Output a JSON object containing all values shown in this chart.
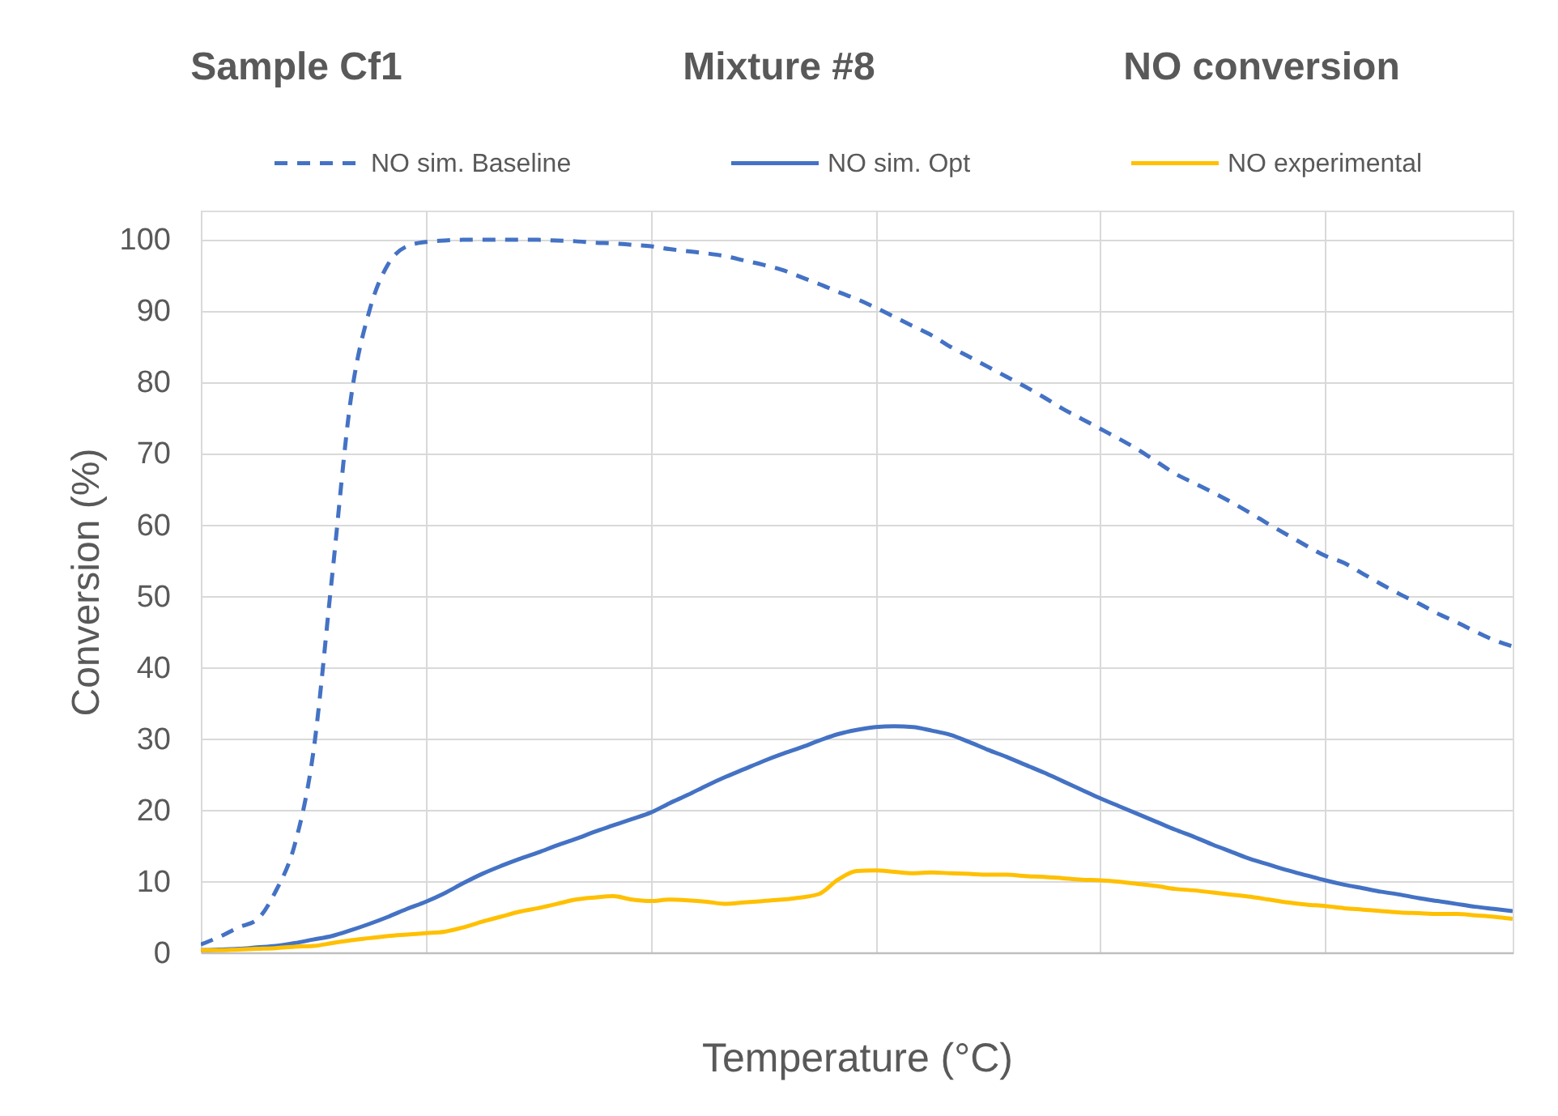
{
  "chart_data": {
    "type": "line",
    "title": "Sample Cf1          Mixture #8          NO conversion",
    "xlabel": "Temperature (°C)",
    "ylabel": "Conversion (%)",
    "categories": [
      null,
      null,
      null,
      null,
      null,
      null,
      null,
      null,
      null,
      null,
      null,
      null,
      null,
      null,
      null,
      null,
      null,
      null,
      null,
      null,
      null,
      null,
      null,
      null,
      null,
      null,
      null,
      null,
      null,
      null,
      null,
      null,
      null,
      null,
      null,
      null,
      null,
      null,
      null,
      null,
      null,
      null,
      null,
      null,
      null,
      null,
      null,
      null,
      null,
      null,
      null,
      null,
      null,
      null,
      null,
      null,
      null,
      null,
      null,
      null,
      null,
      null,
      null,
      null,
      null,
      null,
      null,
      null,
      null,
      null,
      null
    ],
    "series": [
      {
        "name": "NO sim. Baseline",
        "color": "#4472c4",
        "line_style": "dashed",
        "values": [
          1.1,
          2.2,
          3.5,
          4.6,
          8.6,
          15,
          28,
          52.6,
          77.5,
          90,
          96.5,
          99,
          99.6,
          99.8,
          99.9,
          99.9,
          99.9,
          99.9,
          99.9,
          99.8,
          99.7,
          99.5,
          99.4,
          99.2,
          99.0,
          98.6,
          98.3,
          98.0,
          97.6,
          97.0,
          96.4,
          95.7,
          94.7,
          93.7,
          92.6,
          91.6,
          90.4,
          89.1,
          87.8,
          86.5,
          84.9,
          83.5,
          82.1,
          80.7,
          79.3,
          77.8,
          76.2,
          74.8,
          73.4,
          72.0,
          70.5,
          68.8,
          67.1,
          65.8,
          64.5,
          63.1,
          61.6,
          60.0,
          58.5,
          57.0,
          55.6,
          54.6,
          53.1,
          51.6,
          50.2,
          48.9,
          47.5,
          46.3,
          45.0,
          43.8,
          42.9
        ]
      },
      {
        "name": "NO sim. Opt",
        "color": "#4472c4",
        "line_style": "solid",
        "values": [
          0.3,
          0.4,
          0.5,
          0.7,
          0.9,
          1.3,
          1.8,
          2.3,
          3.1,
          4.0,
          5.0,
          6.1,
          7.1,
          8.3,
          9.7,
          11.0,
          12.1,
          13.1,
          14.0,
          15.0,
          15.9,
          16.9,
          17.8,
          18.7,
          19.6,
          20.9,
          22.1,
          23.4,
          24.6,
          25.7,
          26.8,
          27.8,
          28.7,
          29.7,
          30.6,
          31.2,
          31.6,
          31.7,
          31.6,
          31.1,
          30.5,
          29.5,
          28.4,
          27.4,
          26.3,
          25.2,
          24.0,
          22.8,
          21.6,
          20.5,
          19.4,
          18.3,
          17.2,
          16.2,
          15.1,
          14.1,
          13.1,
          12.3,
          11.5,
          10.8,
          10.1,
          9.5,
          9.0,
          8.5,
          8.1,
          7.6,
          7.2,
          6.8,
          6.4,
          6.1,
          5.8
        ]
      },
      {
        "name": "NO experimental",
        "color": "#ffc000",
        "line_style": "solid",
        "values": [
          0.3,
          0.3,
          0.4,
          0.5,
          0.6,
          0.8,
          0.9,
          1.3,
          1.7,
          2.0,
          2.3,
          2.5,
          2.7,
          2.9,
          3.5,
          4.3,
          5.0,
          5.7,
          6.2,
          6.8,
          7.4,
          7.7,
          7.9,
          7.4,
          7.2,
          7.4,
          7.3,
          7.1,
          6.8,
          7.0,
          7.2,
          7.4,
          7.7,
          8.2,
          10.2,
          11.4,
          11.5,
          11.3,
          11.1,
          11.2,
          11.1,
          11.0,
          10.9,
          10.9,
          10.7,
          10.6,
          10.4,
          10.2,
          10.1,
          9.9,
          9.6,
          9.3,
          8.9,
          8.7,
          8.4,
          8.1,
          7.8,
          7.4,
          7.0,
          6.7,
          6.5,
          6.2,
          6.0,
          5.8,
          5.6,
          5.5,
          5.4,
          5.4,
          5.2,
          5.0,
          4.7
        ]
      }
    ],
    "ylim": [
      0,
      104
    ],
    "yticks": [
      0,
      10,
      20,
      30,
      40,
      50,
      60,
      70,
      80,
      90,
      100
    ],
    "grid": true,
    "legend": "top",
    "tick_labels": "y"
  }
}
